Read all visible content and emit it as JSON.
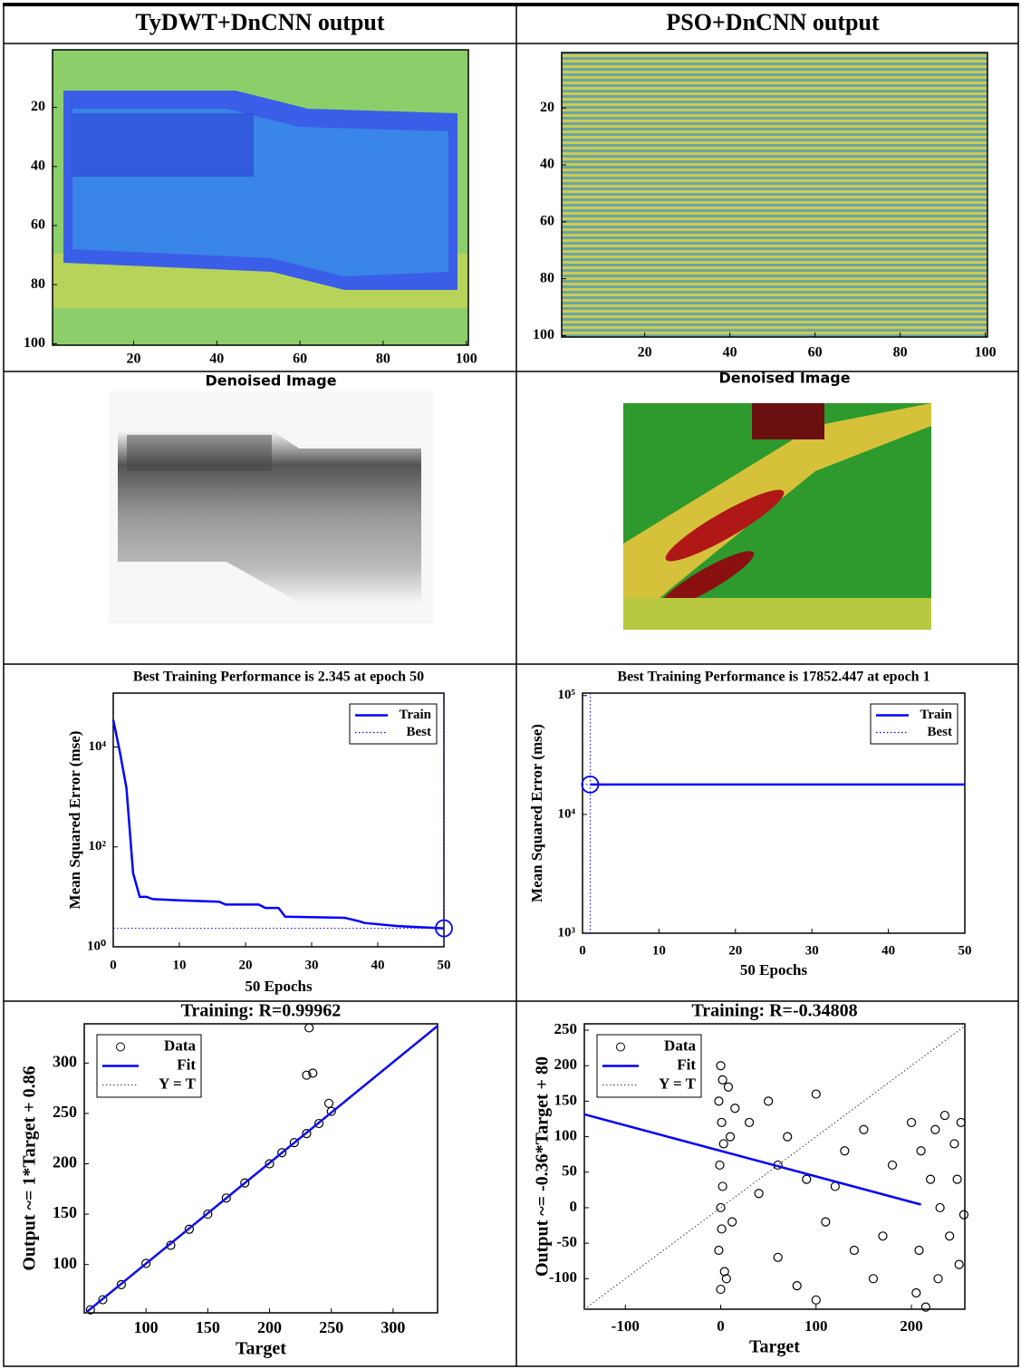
{
  "table": {
    "headers": [
      "TyDWT+DnCNN output",
      "PSO+DnCNN output"
    ]
  },
  "images": [
    {
      "title": "Denoised Image"
    },
    {
      "title": "Denoised Image"
    }
  ],
  "chart_data": [
    {
      "type": "heatmap",
      "xlim": [
        0.5,
        100.5
      ],
      "ylim": [
        0.5,
        100.5
      ],
      "y_reversed": true,
      "xticks": [
        20,
        40,
        60,
        80,
        100
      ],
      "yticks": [
        20,
        40,
        60,
        80,
        100
      ]
    },
    {
      "type": "heatmap",
      "xlim": [
        0.5,
        100.5
      ],
      "ylim": [
        0.5,
        100.5
      ],
      "y_reversed": true,
      "xticks": [
        20,
        40,
        60,
        80,
        100
      ],
      "yticks": [
        20,
        40,
        60,
        80,
        100
      ]
    },
    {
      "type": "line",
      "title": "Best Training Performance is 2.345 at epoch 50",
      "x_label": "50 Epochs",
      "y_label": "Mean Squared Error  (mse)",
      "log_y": true,
      "legend": "upper right",
      "xlim": [
        0,
        50
      ],
      "ylim": [
        1,
        120000
      ],
      "xticks": [
        0,
        10,
        20,
        30,
        40,
        50
      ],
      "yticks": [
        {
          "value": 1,
          "label": "10⁰"
        },
        {
          "value": 100,
          "label": "10²"
        },
        {
          "value": 10000,
          "label": "10⁴"
        }
      ],
      "series": [
        {
          "name": "Train",
          "color": "#0000ff",
          "style": "solid",
          "x": [
            0,
            1,
            2,
            3,
            4,
            5,
            6,
            10,
            16,
            17,
            22,
            23,
            25,
            26,
            35,
            37,
            38,
            43,
            50
          ],
          "values": [
            35000,
            8000,
            1500,
            30,
            10,
            10,
            9,
            8.5,
            8,
            7,
            7,
            6,
            6,
            4,
            3.8,
            3.3,
            3,
            2.6,
            2.345
          ]
        },
        {
          "name": "Best",
          "color": "#0000ff",
          "style": "best",
          "x": [
            50
          ],
          "values": [
            2.345
          ]
        }
      ]
    },
    {
      "type": "line",
      "title": "Best Training Performance is 17852.447 at epoch 1",
      "x_label": "50 Epochs",
      "y_label": "Mean Squared Error  (mse)",
      "log_y": true,
      "legend": "upper right",
      "xlim": [
        0,
        50
      ],
      "ylim": [
        1000,
        105000
      ],
      "xticks": [
        0,
        10,
        20,
        30,
        40,
        50
      ],
      "yticks": [
        {
          "value": 1000,
          "label": "10³"
        },
        {
          "value": 10000,
          "label": "10⁴"
        },
        {
          "value": 100000,
          "label": "10⁵"
        }
      ],
      "series": [
        {
          "name": "Train",
          "color": "#0000ff",
          "style": "solid",
          "x": [
            1,
            50
          ],
          "values": [
            17852.447,
            17852.447
          ]
        },
        {
          "name": "Best",
          "color": "#0000ff",
          "style": "best",
          "x": [
            1
          ],
          "values": [
            17852.447
          ]
        }
      ]
    },
    {
      "type": "scatter",
      "title": "Training: R=0.99962",
      "x_label": "Target",
      "y_label": "Output ~= 1*Target + 0.86",
      "legend": "upper left",
      "xlim": [
        50,
        336
      ],
      "ylim": [
        52,
        339
      ],
      "xticks": [
        100,
        150,
        200,
        250,
        300
      ],
      "yticks": [
        100,
        150,
        200,
        250,
        300
      ],
      "series": [
        {
          "name": "Data",
          "color": "#000000",
          "style": "marker",
          "x": [
            55,
            65,
            80,
            100,
            120,
            135,
            150,
            165,
            180,
            200,
            210,
            220,
            230,
            240,
            250,
            248,
            230,
            235,
            232
          ],
          "values": [
            55,
            65,
            80,
            101,
            119,
            135,
            150,
            166,
            181,
            200,
            211,
            221,
            230,
            240,
            252,
            260,
            288,
            290,
            335
          ]
        },
        {
          "name": "Fit",
          "color": "#0000ff",
          "style": "solid",
          "x": [
            52,
            336
          ],
          "values": [
            52.86,
            336.86
          ]
        },
        {
          "name": "Y = T",
          "color": "#555555",
          "style": "dotted",
          "x": [
            52,
            336
          ],
          "values": [
            52,
            336
          ]
        }
      ]
    },
    {
      "type": "scatter",
      "title": "Training: R=-0.34808",
      "x_label": "Target",
      "y_label": "Output ~= -0.36*Target + 80",
      "legend": "upper left",
      "xlim": [
        -143,
        256
      ],
      "ylim": [
        -143,
        259
      ],
      "xticks": [
        -100,
        0,
        100,
        200
      ],
      "yticks": [
        -100,
        -50,
        0,
        50,
        100,
        150,
        200,
        250
      ],
      "series": [
        {
          "name": "Data",
          "color": "#000000",
          "style": "marker",
          "x": [
            0,
            2,
            -2,
            1,
            3,
            -1,
            2,
            0,
            1,
            -2,
            4,
            0,
            8,
            10,
            12,
            15,
            6,
            30,
            50,
            70,
            90,
            110,
            130,
            60,
            80,
            100,
            120,
            140,
            150,
            170,
            180,
            40,
            100,
            160,
            60,
            200,
            210,
            220,
            230,
            240,
            250,
            205,
            215,
            225,
            235,
            245,
            255,
            208,
            228,
            248,
            252
          ],
          "values": [
            200,
            180,
            150,
            120,
            90,
            60,
            30,
            0,
            -30,
            -60,
            -90,
            -115,
            170,
            100,
            -20,
            140,
            -100,
            120,
            150,
            100,
            40,
            -20,
            80,
            -70,
            -110,
            -130,
            30,
            -60,
            110,
            -40,
            60,
            20,
            160,
            -100,
            60,
            120,
            80,
            40,
            0,
            -40,
            -80,
            -120,
            -140,
            110,
            130,
            90,
            -10,
            -60,
            -100,
            40,
            120
          ]
        },
        {
          "name": "Fit",
          "color": "#0000ff",
          "style": "solid",
          "x": [
            -143,
            210
          ],
          "values": [
            131.48,
            4.4
          ]
        },
        {
          "name": "Y = T",
          "color": "#555555",
          "style": "dotted",
          "x": [
            -143,
            256
          ],
          "values": [
            -143,
            256
          ]
        }
      ]
    }
  ]
}
